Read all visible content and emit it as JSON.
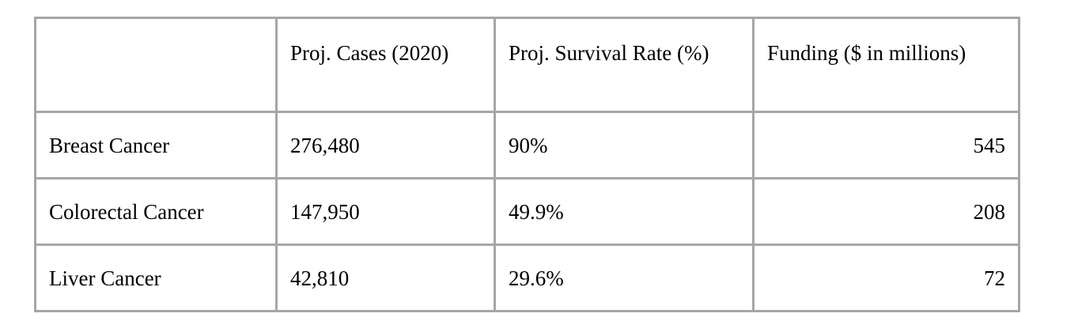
{
  "table": {
    "headers": [
      "",
      "Proj. Cases (2020)",
      "Proj. Survival Rate (%)",
      "Funding ($ in millions)"
    ],
    "rows": [
      [
        "Breast Cancer",
        "276,480",
        "90%",
        "545"
      ],
      [
        "Colorectal Cancer",
        "147,950",
        "49.9%",
        "208"
      ],
      [
        "Liver Cancer",
        "42,810",
        "29.6%",
        "72"
      ]
    ]
  },
  "chart_data": {
    "type": "table",
    "columns": [
      "",
      "Proj. Cases (2020)",
      "Proj. Survival Rate (%)",
      "Funding ($ in millions)"
    ],
    "rows": [
      [
        "Breast Cancer",
        "276,480",
        "90%",
        "545"
      ],
      [
        "Colorectal Cancer",
        "147,950",
        "49.9%",
        "208"
      ],
      [
        "Liver Cancer",
        "42,810",
        "29.6%",
        "72"
      ]
    ]
  },
  "colors": {
    "border": "#a6a6a6",
    "text": "#000000",
    "background": "#ffffff"
  }
}
